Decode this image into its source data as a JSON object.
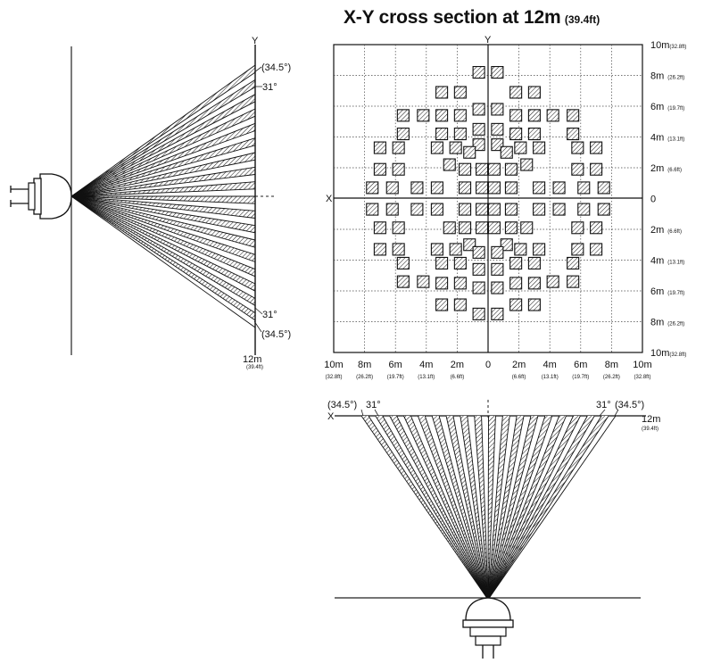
{
  "title": {
    "main": "X-Y cross section at 12m",
    "unit": "(39.4ft)"
  },
  "axes": {
    "x": "X",
    "y": "Y"
  },
  "grid": {
    "right_labels": [
      {
        "v": 10,
        "m": "10m",
        "ft": "(32.8ft)"
      },
      {
        "v": 8,
        "m": "8m",
        "ft": "(26.2ft)"
      },
      {
        "v": 6,
        "m": "6m",
        "ft": "(19.7ft)"
      },
      {
        "v": 4,
        "m": "4m",
        "ft": "(13.1ft)"
      },
      {
        "v": 2,
        "m": "2m",
        "ft": "(6.6ft)"
      },
      {
        "v": 0,
        "m": "0",
        "ft": ""
      },
      {
        "v": -2,
        "m": "2m",
        "ft": "(6.6ft)"
      },
      {
        "v": -4,
        "m": "4m",
        "ft": "(13.1ft)"
      },
      {
        "v": -6,
        "m": "6m",
        "ft": "(19.7ft)"
      },
      {
        "v": -8,
        "m": "8m",
        "ft": "(26.2ft)"
      },
      {
        "v": -10,
        "m": "10m",
        "ft": "(32.8ft)"
      }
    ],
    "bottom_labels": [
      {
        "v": -10,
        "m": "10m",
        "ft": "(32.8ft)"
      },
      {
        "v": -8,
        "m": "8m",
        "ft": "(26.2ft)"
      },
      {
        "v": -6,
        "m": "6m",
        "ft": "(19.7ft)"
      },
      {
        "v": -4,
        "m": "4m",
        "ft": "(13.1ft)"
      },
      {
        "v": -2,
        "m": "2m",
        "ft": "(6.6ft)"
      },
      {
        "v": 0,
        "m": "0",
        "ft": ""
      },
      {
        "v": 2,
        "m": "2m",
        "ft": "(6.6ft)"
      },
      {
        "v": 4,
        "m": "4m",
        "ft": "(13.1ft)"
      },
      {
        "v": 6,
        "m": "6m",
        "ft": "(19.7ft)"
      },
      {
        "v": 8,
        "m": "8m",
        "ft": "(26.2ft)"
      },
      {
        "v": 10,
        "m": "10m",
        "ft": "(32.8ft)"
      }
    ]
  },
  "detection_zones": [
    [
      -0.6,
      8.2
    ],
    [
      0.6,
      8.2
    ],
    [
      -3.0,
      6.9
    ],
    [
      -1.8,
      6.9
    ],
    [
      1.8,
      6.9
    ],
    [
      3.0,
      6.9
    ],
    [
      -0.6,
      5.8
    ],
    [
      0.6,
      5.8
    ],
    [
      -5.5,
      5.4
    ],
    [
      -4.2,
      5.4
    ],
    [
      -3.0,
      5.4
    ],
    [
      -1.8,
      5.4
    ],
    [
      1.8,
      5.4
    ],
    [
      3.0,
      5.4
    ],
    [
      4.2,
      5.4
    ],
    [
      5.5,
      5.4
    ],
    [
      -0.6,
      4.5
    ],
    [
      0.6,
      4.5
    ],
    [
      -5.5,
      4.2
    ],
    [
      -3.0,
      4.2
    ],
    [
      -1.8,
      4.2
    ],
    [
      1.8,
      4.2
    ],
    [
      3.0,
      4.2
    ],
    [
      5.5,
      4.2
    ],
    [
      -0.6,
      3.5
    ],
    [
      0.6,
      3.5
    ],
    [
      -7.0,
      3.3
    ],
    [
      -5.8,
      3.3
    ],
    [
      -3.3,
      3.3
    ],
    [
      -2.1,
      3.3
    ],
    [
      -1.2,
      3.0
    ],
    [
      1.2,
      3.0
    ],
    [
      2.1,
      3.3
    ],
    [
      3.3,
      3.3
    ],
    [
      5.8,
      3.3
    ],
    [
      7.0,
      3.3
    ],
    [
      -7.0,
      1.9
    ],
    [
      -5.8,
      1.9
    ],
    [
      -2.5,
      2.2
    ],
    [
      -1.5,
      1.9
    ],
    [
      -0.4,
      1.9
    ],
    [
      0.4,
      1.9
    ],
    [
      1.5,
      1.9
    ],
    [
      2.5,
      2.2
    ],
    [
      5.8,
      1.9
    ],
    [
      7.0,
      1.9
    ],
    [
      -7.5,
      0.7
    ],
    [
      -6.2,
      0.7
    ],
    [
      -4.6,
      0.7
    ],
    [
      -3.3,
      0.7
    ],
    [
      -1.5,
      0.7
    ],
    [
      -0.4,
      0.7
    ],
    [
      0.4,
      0.7
    ],
    [
      1.5,
      0.7
    ],
    [
      3.3,
      0.7
    ],
    [
      4.6,
      0.7
    ],
    [
      6.2,
      0.7
    ],
    [
      7.5,
      0.7
    ],
    [
      -7.5,
      -0.7
    ],
    [
      -6.2,
      -0.7
    ],
    [
      -4.6,
      -0.7
    ],
    [
      -3.3,
      -0.7
    ],
    [
      -1.5,
      -0.7
    ],
    [
      -0.4,
      -0.7
    ],
    [
      0.4,
      -0.7
    ],
    [
      1.5,
      -0.7
    ],
    [
      3.3,
      -0.7
    ],
    [
      4.6,
      -0.7
    ],
    [
      6.2,
      -0.7
    ],
    [
      7.5,
      -0.7
    ],
    [
      -7.0,
      -1.9
    ],
    [
      -5.8,
      -1.9
    ],
    [
      -2.5,
      -1.9
    ],
    [
      -1.5,
      -1.9
    ],
    [
      -0.4,
      -1.9
    ],
    [
      0.4,
      -1.9
    ],
    [
      1.5,
      -1.9
    ],
    [
      2.5,
      -1.9
    ],
    [
      5.8,
      -1.9
    ],
    [
      7.0,
      -1.9
    ],
    [
      -7.0,
      -3.3
    ],
    [
      -5.8,
      -3.3
    ],
    [
      -3.3,
      -3.3
    ],
    [
      -2.1,
      -3.3
    ],
    [
      -1.2,
      -3.0
    ],
    [
      1.2,
      -3.0
    ],
    [
      2.1,
      -3.3
    ],
    [
      3.3,
      -3.3
    ],
    [
      5.8,
      -3.3
    ],
    [
      7.0,
      -3.3
    ],
    [
      -0.6,
      -3.5
    ],
    [
      0.6,
      -3.5
    ],
    [
      -5.5,
      -4.2
    ],
    [
      -3.0,
      -4.2
    ],
    [
      -1.8,
      -4.2
    ],
    [
      1.8,
      -4.2
    ],
    [
      3.0,
      -4.2
    ],
    [
      5.5,
      -4.2
    ],
    [
      -0.6,
      -4.6
    ],
    [
      0.6,
      -4.6
    ],
    [
      -5.5,
      -5.4
    ],
    [
      -4.2,
      -5.4
    ],
    [
      -3.0,
      -5.5
    ],
    [
      -1.8,
      -5.5
    ],
    [
      1.8,
      -5.5
    ],
    [
      3.0,
      -5.5
    ],
    [
      4.2,
      -5.4
    ],
    [
      5.5,
      -5.4
    ],
    [
      -0.6,
      -5.8
    ],
    [
      0.6,
      -5.8
    ],
    [
      -3.0,
      -6.9
    ],
    [
      -1.8,
      -6.9
    ],
    [
      1.8,
      -6.9
    ],
    [
      3.0,
      -6.9
    ],
    [
      -0.6,
      -7.5
    ],
    [
      0.6,
      -7.5
    ]
  ],
  "side_view": {
    "angle_outer": "(34.5°)",
    "angle_inner": "31°",
    "distance": "12m",
    "distance_ft": "(39.4ft)"
  },
  "top_view": {
    "angle_outer": "(34.5°)",
    "angle_inner": "31°",
    "distance": "12m",
    "distance_ft": "(39.4ft)"
  }
}
